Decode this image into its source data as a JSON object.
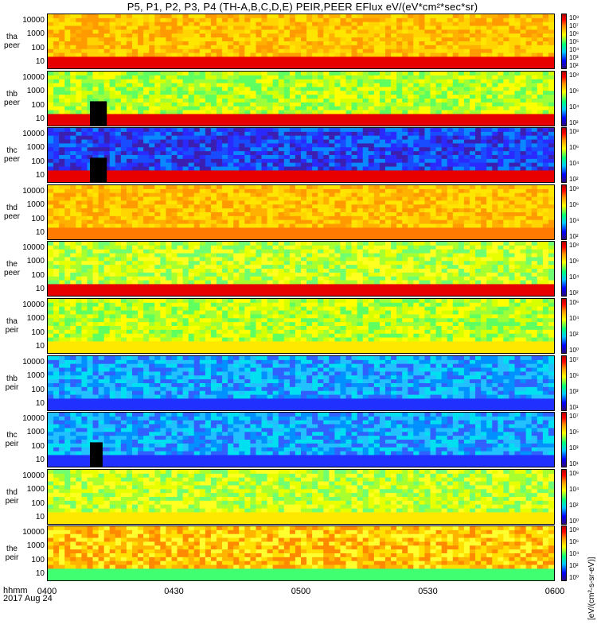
{
  "title": "P5, P1, P2, P3, P4 (TH-A,B,C,D,E) PEIR,PEER EFlux eV/(eV*cm²*sec*sr)",
  "colorbar_label": "[eV/(cm²-s-sr-eV)]",
  "colors": {
    "scale": [
      "#2a0a78",
      "#0000ff",
      "#00c8ff",
      "#00ff7a",
      "#ffff00",
      "#ff8c00",
      "#ff0000",
      "#b00000"
    ],
    "fill_gap": "#000000"
  },
  "chart_data": {
    "type": "heatmap",
    "title": "P5, P1, P2, P3, P4 (TH-A,B,C,D,E) PEIR,PEER EFlux eV/(eV*cm²*sec*sr)",
    "x_label_line1": "hhmm",
    "x_label_line2": "2017 Aug 24",
    "x_ticks": [
      "0400",
      "0430",
      "0500",
      "0530",
      "0600"
    ],
    "x_range": [
      "04:00",
      "06:00"
    ],
    "y_scale": "log",
    "y_ticks": [
      "10000",
      "1000",
      "100",
      "10"
    ],
    "panels": [
      {
        "label_top": "tha",
        "label_bottom": "peer",
        "cbar_ticks": [
          "10⁸",
          "10⁷",
          "10⁶",
          "10⁵",
          "10⁴",
          "10³",
          "10²"
        ],
        "dominant": "yellow-orange",
        "low_energy": "red"
      },
      {
        "label_top": "thb",
        "label_bottom": "peer",
        "cbar_ticks": [
          "10⁸",
          "10⁶",
          "10⁴",
          "10²"
        ],
        "dominant": "green-yellow",
        "low_energy": "red",
        "gap_minutes": [
          10,
          14
        ]
      },
      {
        "label_top": "thc",
        "label_bottom": "peer",
        "cbar_ticks": [
          "10⁸",
          "10⁶",
          "10⁴",
          "10²"
        ],
        "dominant": "blue",
        "low_energy": "red",
        "gap_minutes": [
          10,
          14
        ]
      },
      {
        "label_top": "thd",
        "label_bottom": "peer",
        "cbar_ticks": [
          "10⁸",
          "10⁶",
          "10⁴",
          "10²"
        ],
        "dominant": "yellow-orange",
        "low_energy": "orange"
      },
      {
        "label_top": "the",
        "label_bottom": "peer",
        "cbar_ticks": [
          "10⁸",
          "10⁶",
          "10⁴",
          "10²"
        ],
        "dominant": "yellow-green",
        "low_energy": "red"
      },
      {
        "label_top": "tha",
        "label_bottom": "peir",
        "cbar_ticks": [
          "10⁶",
          "10⁴",
          "10²",
          "10⁰"
        ],
        "dominant": "green-yellow",
        "low_energy": "yellow"
      },
      {
        "label_top": "thb",
        "label_bottom": "peir",
        "cbar_ticks": [
          "10⁷",
          "10⁵",
          "10³",
          "10¹"
        ],
        "dominant": "cyan-blue",
        "low_energy": "blue"
      },
      {
        "label_top": "thc",
        "label_bottom": "peir",
        "cbar_ticks": [
          "10⁷",
          "10⁵",
          "10³",
          "10¹"
        ],
        "dominant": "cyan-blue",
        "low_energy": "blue",
        "gap_minutes": [
          10,
          13
        ]
      },
      {
        "label_top": "thd",
        "label_bottom": "peir",
        "cbar_ticks": [
          "10⁶",
          "10⁴",
          "10²",
          "10⁰"
        ],
        "dominant": "yellow-green",
        "low_energy": "yellow"
      },
      {
        "label_top": "the",
        "label_bottom": "peir",
        "cbar_ticks": [
          "10⁸",
          "10⁶",
          "10⁴",
          "10²",
          "10⁰"
        ],
        "dominant": "orange-yellow",
        "low_energy": "green"
      }
    ]
  }
}
